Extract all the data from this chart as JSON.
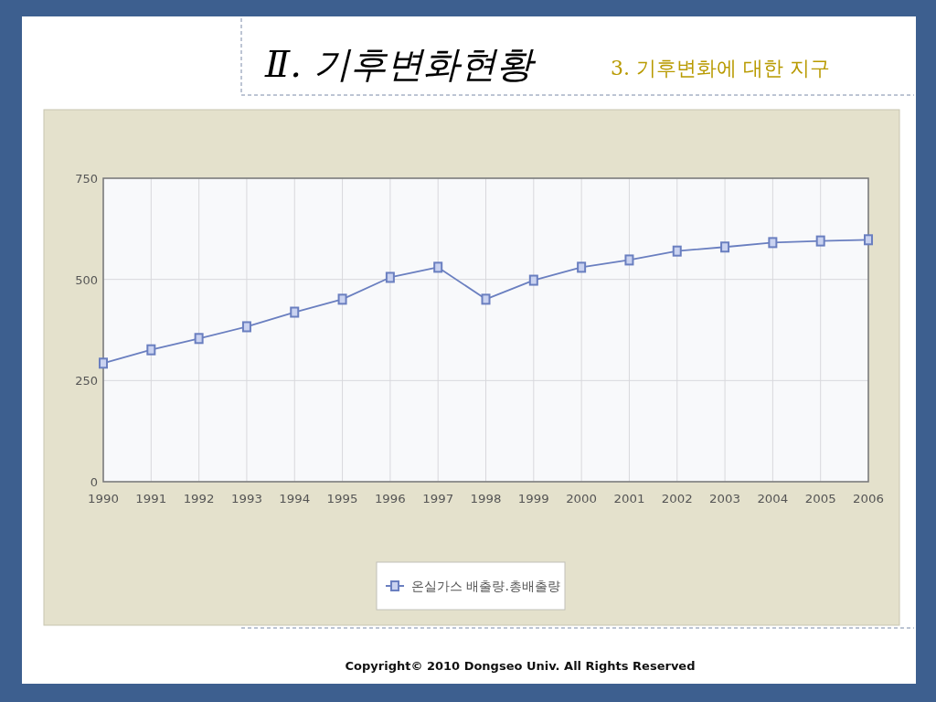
{
  "chart_data": {
    "type": "line",
    "title": "Ⅱ. 기후변화현황",
    "subtitle": "3. 기후변화에 대한 지구",
    "annotations": [
      "Copyright© 2010 Dongseo Univ. All Rights Reserved"
    ],
    "x": [
      1990,
      1991,
      1992,
      1993,
      1994,
      1995,
      1996,
      1997,
      1998,
      1999,
      2000,
      2001,
      2002,
      2003,
      2004,
      2005,
      2006
    ],
    "xlim": [
      1990,
      2006
    ],
    "xticks": [
      1990,
      1991,
      1992,
      1993,
      1994,
      1995,
      1996,
      1997,
      1998,
      1999,
      2000,
      2001,
      2002,
      2003,
      2004,
      2005,
      2006
    ],
    "ylim": [
      0,
      750
    ],
    "yticks": [
      0,
      250,
      500,
      750
    ],
    "series": [
      {
        "name": "온실가스 배출량.총배출량",
        "color": "#6a7fc0",
        "values": [
          293,
          326,
          354,
          383,
          419,
          451,
          505,
          530,
          451,
          498,
          530,
          548,
          570,
          580,
          591,
          595,
          598
        ]
      }
    ],
    "grid": true,
    "legend": "bottom",
    "marker": "square",
    "line_style": "solid"
  }
}
